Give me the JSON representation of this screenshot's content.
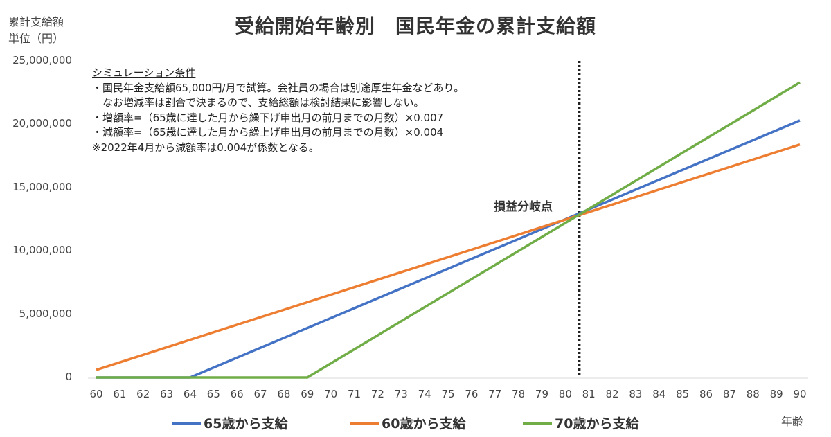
{
  "chart_data": {
    "type": "line",
    "title": "受給開始年齢別　国民年金の累計支給額",
    "ylabel_lines": [
      "累計支給額",
      "単位（円）"
    ],
    "xlabel": "年齢",
    "ylim": [
      0,
      25000000
    ],
    "xlim": [
      60,
      90
    ],
    "yticks": [
      {
        "value": 0,
        "label": "0"
      },
      {
        "value": 5000000,
        "label": "5,000,000"
      },
      {
        "value": 10000000,
        "label": "10,000,000"
      },
      {
        "value": 15000000,
        "label": "15,000,000"
      },
      {
        "value": 20000000,
        "label": "20,000,000"
      },
      {
        "value": 25000000,
        "label": "25,000,000"
      }
    ],
    "xticks": [
      "60",
      "61",
      "62",
      "63",
      "64",
      "65",
      "66",
      "67",
      "68",
      "69",
      "70",
      "71",
      "72",
      "73",
      "74",
      "75",
      "76",
      "77",
      "78",
      "79",
      "80",
      "81",
      "82",
      "83",
      "84",
      "85",
      "86",
      "87",
      "88",
      "89",
      "90"
    ],
    "grid": false,
    "legend_position": "bottom",
    "series": [
      {
        "name": "65歳から支給",
        "color": "#4472C4",
        "points": [
          [
            60,
            0
          ],
          [
            64,
            0
          ],
          [
            90,
            20300000
          ]
        ]
      },
      {
        "name": "60歳から支給",
        "color": "#ED7D31",
        "points": [
          [
            60,
            600000
          ],
          [
            90,
            18400000
          ]
        ]
      },
      {
        "name": "70歳から支給",
        "color": "#70AD47",
        "points": [
          [
            60,
            0
          ],
          [
            69,
            0
          ],
          [
            90,
            23300000
          ]
        ]
      }
    ],
    "breakeven": {
      "x": 80.6,
      "y": 12800000,
      "label": "損益分岐点"
    },
    "notes": {
      "heading": "シミュレーション条件",
      "lines": [
        "・国民年金支給額65,000円/月で試算。会社員の場合は別途厚生年金などあり。",
        "　なお増減率は割合で決まるので、支給総額は検討結果に影響しない。",
        "・増額率=（65歳に達した月から繰下げ申出月の前月までの月数）×0.007",
        "・減額率=（65歳に達した月から繰上げ申出月の前月までの月数）×0.004",
        "※2022年4月から減額率は0.004が係数となる。"
      ]
    }
  }
}
